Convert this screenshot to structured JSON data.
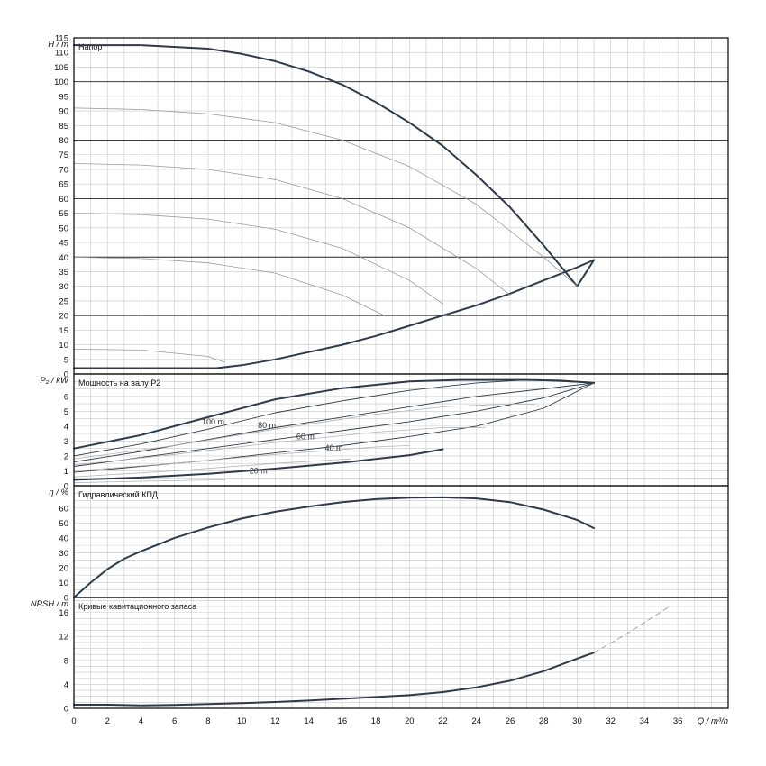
{
  "chart_data": [
    {
      "type": "line",
      "title": "Напор",
      "ylabel": "H / m",
      "xlabel": "Q / m³/h",
      "xlim": [
        0,
        39
      ],
      "ylim": [
        0,
        115
      ],
      "yticks": [
        0,
        5,
        10,
        15,
        20,
        25,
        30,
        35,
        40,
        45,
        50,
        55,
        60,
        65,
        70,
        75,
        80,
        85,
        90,
        95,
        100,
        105,
        110,
        115
      ],
      "grid": true,
      "series": [
        {
          "role": "max",
          "x": [
            0,
            4,
            8,
            10,
            12,
            14,
            16,
            18,
            20,
            22,
            24,
            26,
            28,
            30,
            31
          ],
          "y": [
            112.5,
            112.5,
            111.3,
            109.5,
            107,
            103.5,
            99,
            93,
            86,
            78,
            68,
            57,
            44,
            30,
            39
          ]
        },
        {
          "role": "min",
          "x": [
            0,
            8.5,
            10,
            12,
            14,
            16,
            18,
            20,
            22,
            24,
            26,
            28,
            30,
            31
          ],
          "y": [
            2,
            2,
            3,
            5,
            7.5,
            10,
            13,
            16.5,
            20,
            23.5,
            27.5,
            32,
            36.5,
            39
          ]
        },
        {
          "role": "speed",
          "x": [
            0,
            4,
            8,
            12,
            16,
            20,
            24,
            28,
            30
          ],
          "y": [
            91,
            90.5,
            89,
            86,
            80,
            71,
            58,
            40,
            30
          ]
        },
        {
          "role": "speed",
          "x": [
            0,
            4,
            8,
            12,
            16,
            20,
            24,
            26
          ],
          "y": [
            72,
            71.5,
            70,
            66.5,
            60,
            50,
            36,
            27
          ]
        },
        {
          "role": "speed",
          "x": [
            0,
            4,
            8,
            12,
            16,
            20,
            22
          ],
          "y": [
            55,
            54.5,
            53,
            49.5,
            43,
            32,
            24
          ]
        },
        {
          "role": "speed",
          "x": [
            0,
            4,
            8,
            12,
            16,
            18.5
          ],
          "y": [
            40,
            39.5,
            38,
            34.5,
            27,
            20
          ]
        },
        {
          "role": "speed",
          "x": [
            0,
            4,
            8,
            9
          ],
          "y": [
            8.5,
            8.2,
            6,
            4
          ]
        }
      ]
    },
    {
      "type": "line",
      "title": "Мощность на валу P2",
      "ylabel": "P₂ / kW",
      "xlim": [
        0,
        39
      ],
      "ylim": [
        0,
        7.5
      ],
      "yticks": [
        0,
        1,
        2,
        3,
        4,
        5,
        6
      ],
      "grid": true,
      "annotations": [
        {
          "text": "100 m",
          "x": 8.3,
          "y": 4.3
        },
        {
          "text": "80 m",
          "x": 11.5,
          "y": 4.05
        },
        {
          "text": "60 m",
          "x": 13.8,
          "y": 3.3
        },
        {
          "text": "40 m",
          "x": 15.5,
          "y": 2.55
        },
        {
          "text": "20 m",
          "x": 11,
          "y": 1.0
        }
      ],
      "series": [
        {
          "role": "max",
          "x": [
            0,
            4,
            8,
            12,
            16,
            20,
            23,
            27,
            29,
            31
          ],
          "y": [
            2.5,
            3.4,
            4.6,
            5.8,
            6.55,
            7,
            7.1,
            7.1,
            7.05,
            6.9
          ]
        },
        {
          "role": "family",
          "x": [
            0,
            4,
            8,
            12,
            16,
            20,
            24,
            27,
            31
          ],
          "y": [
            2.0,
            2.8,
            3.8,
            4.9,
            5.7,
            6.4,
            6.9,
            7.1,
            6.9
          ]
        },
        {
          "role": "family",
          "x": [
            0,
            4,
            8,
            12,
            16,
            20,
            24,
            28,
            31
          ],
          "y": [
            1.6,
            2.3,
            3.1,
            3.9,
            4.6,
            5.3,
            6.0,
            6.5,
            6.9
          ]
        },
        {
          "role": "family",
          "x": [
            0,
            4,
            8,
            12,
            16,
            20,
            24,
            28,
            31
          ],
          "y": [
            1.3,
            1.9,
            2.5,
            3.1,
            3.7,
            4.3,
            5.0,
            5.9,
            6.9
          ]
        },
        {
          "role": "family",
          "x": [
            0,
            4,
            8,
            12,
            16,
            20,
            24,
            28,
            31
          ],
          "y": [
            0.9,
            1.3,
            1.7,
            2.2,
            2.7,
            3.3,
            4.0,
            5.2,
            6.9
          ]
        },
        {
          "role": "min",
          "x": [
            0,
            4,
            8,
            12,
            16,
            20,
            22
          ],
          "y": [
            0.4,
            0.55,
            0.8,
            1.15,
            1.55,
            2.05,
            2.45
          ]
        },
        {
          "role": "speed-grey",
          "x": [
            0,
            6,
            12,
            18,
            22,
            26,
            27.5
          ],
          "y": [
            1.8,
            2.7,
            3.8,
            4.8,
            5.3,
            5.5,
            5.45
          ]
        },
        {
          "role": "speed-grey",
          "x": [
            0,
            6,
            12,
            18,
            22,
            24.5
          ],
          "y": [
            1.4,
            2.1,
            2.9,
            3.6,
            3.9,
            3.9
          ]
        },
        {
          "role": "speed-grey",
          "x": [
            0,
            6,
            12,
            18,
            20
          ],
          "y": [
            1.0,
            1.5,
            2.1,
            2.6,
            2.7
          ]
        },
        {
          "role": "speed-grey",
          "x": [
            0,
            6,
            12,
            16.5
          ],
          "y": [
            0.6,
            1.0,
            1.5,
            1.8
          ]
        },
        {
          "role": "speed-grey",
          "x": [
            0,
            4,
            9
          ],
          "y": [
            0.2,
            0.3,
            0.4
          ]
        }
      ]
    },
    {
      "type": "line",
      "title": "Гидравлический КПД",
      "ylabel": "η / %",
      "xlim": [
        0,
        39
      ],
      "ylim": [
        0,
        75
      ],
      "yticks": [
        0,
        10,
        20,
        30,
        40,
        50,
        60
      ],
      "grid": true,
      "series": [
        {
          "role": "max",
          "x": [
            0,
            1,
            2,
            3,
            4,
            6,
            8,
            10,
            12,
            14,
            16,
            18,
            20,
            22,
            24,
            26,
            28,
            30,
            31
          ],
          "y": [
            0,
            10,
            19,
            26,
            31,
            40,
            47,
            53,
            57.5,
            61,
            64,
            66,
            67,
            67.2,
            66.5,
            64,
            59,
            52,
            46.5
          ]
        }
      ]
    },
    {
      "type": "line",
      "title": "Кривые кавитационного запаса",
      "ylabel": "NPSH / m",
      "xlim": [
        0,
        39
      ],
      "ylim": [
        0,
        18.5
      ],
      "yticks": [
        0,
        4,
        8,
        12,
        16
      ],
      "grid": true,
      "series": [
        {
          "role": "max",
          "x": [
            0,
            2,
            4,
            6,
            8,
            10,
            12,
            14,
            16,
            18,
            20,
            22,
            24,
            26,
            28,
            30,
            31
          ],
          "y": [
            0.6,
            0.6,
            0.5,
            0.55,
            0.7,
            0.85,
            1.05,
            1.3,
            1.6,
            1.9,
            2.2,
            2.7,
            3.5,
            4.6,
            6.2,
            8.3,
            9.3
          ]
        },
        {
          "role": "extrapolated",
          "x": [
            31,
            33,
            35.5
          ],
          "y": [
            9.3,
            12.5,
            17
          ]
        }
      ]
    }
  ],
  "x_axis": {
    "label": "Q / m³/h",
    "ticks": [
      0,
      2,
      4,
      6,
      8,
      10,
      12,
      14,
      16,
      18,
      20,
      22,
      24,
      26,
      28,
      30,
      32,
      34,
      36
    ]
  }
}
